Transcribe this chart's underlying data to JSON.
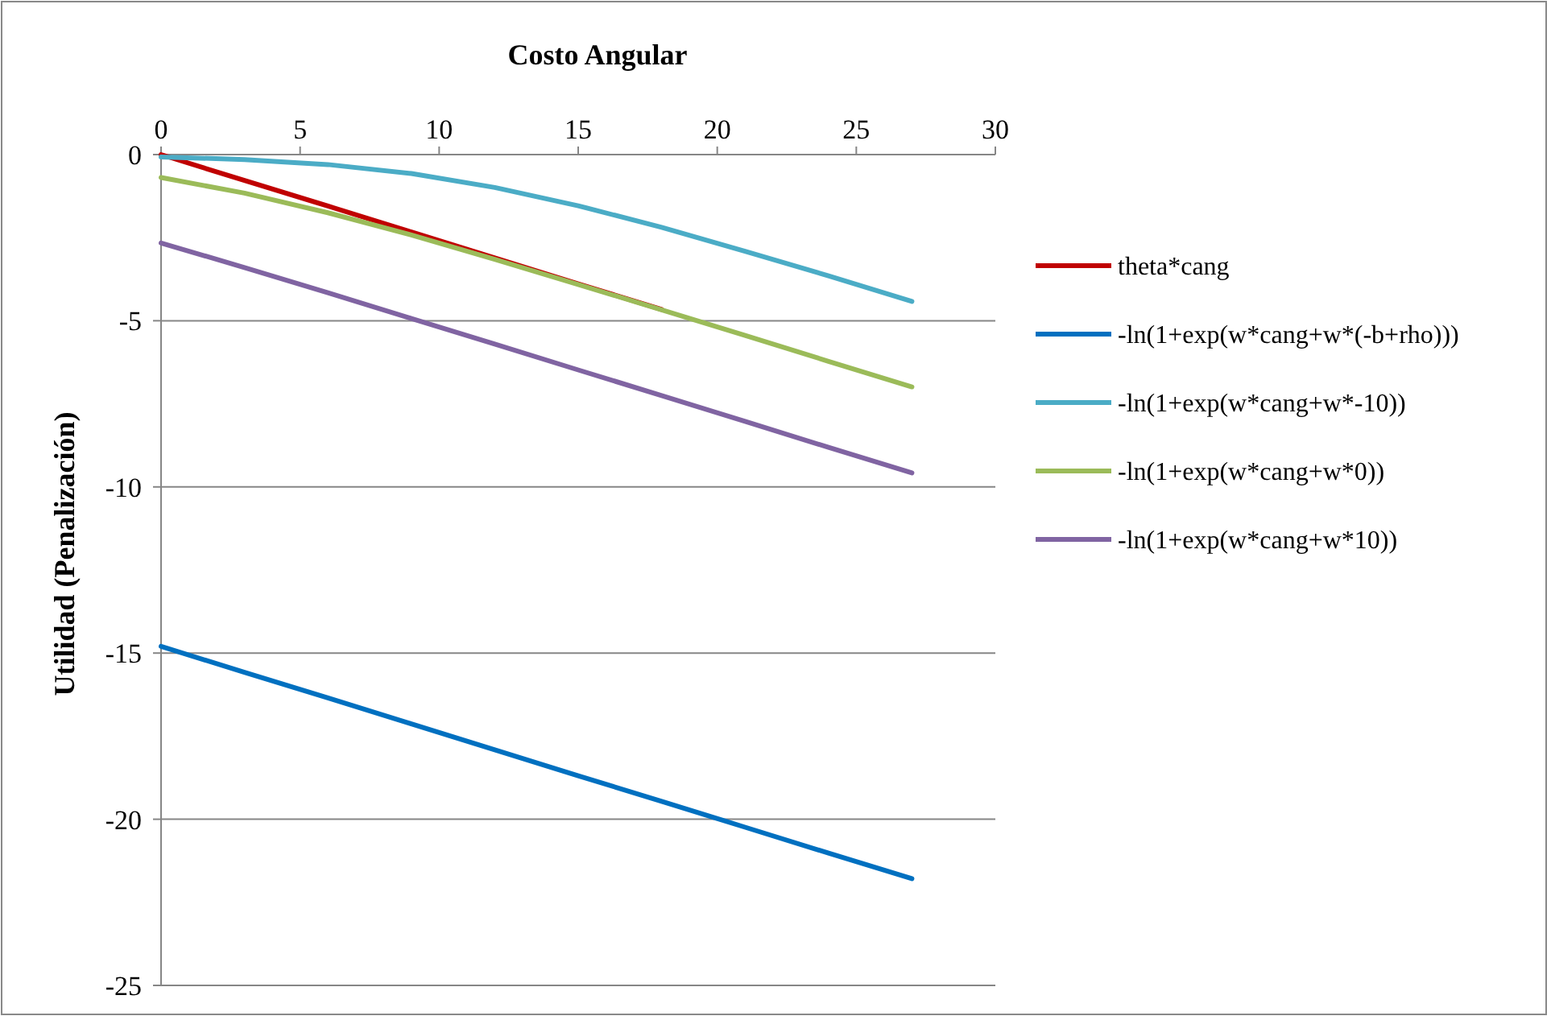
{
  "chart_data": {
    "type": "line",
    "xlabel": "Costo Angular",
    "ylabel": "Utilidad  (Penalización)",
    "x": [
      0,
      3,
      6,
      9,
      12,
      15,
      18,
      21,
      24,
      27
    ],
    "xlim": [
      0,
      30
    ],
    "xticks": [
      0,
      5,
      10,
      15,
      20,
      25,
      30
    ],
    "ylim": [
      -25,
      0
    ],
    "yticks": [
      -25,
      -20,
      -15,
      -10,
      -5,
      0
    ],
    "grid": "y",
    "legend": "right",
    "marker": "none",
    "line_style": "solid",
    "series": [
      {
        "name": "theta*cang",
        "color": "#c00000",
        "values": [
          0,
          -0.78,
          -1.55,
          -2.33,
          -3.11,
          -3.89,
          -4.66,
          null,
          null,
          null
        ]
      },
      {
        "name": "-ln(1+exp(w*cang+w*(-b+rho)))",
        "color": "#0070c0",
        "values": [
          -14.8,
          -15.58,
          -16.35,
          -17.13,
          -17.91,
          -18.69,
          -19.46,
          -20.24,
          -21.02,
          -21.79
        ]
      },
      {
        "name": "-ln(1+exp(w*cang+w*-10))",
        "color": "#4bacc6",
        "values": [
          -0.07,
          -0.15,
          -0.3,
          -0.57,
          -0.99,
          -1.54,
          -2.19,
          -2.91,
          -3.65,
          -4.42
        ]
      },
      {
        "name": "-ln(1+exp(w*cang+w*0))",
        "color": "#9bbb59",
        "values": [
          -0.69,
          -1.16,
          -1.75,
          -2.42,
          -3.15,
          -3.91,
          -4.67,
          -5.44,
          -6.22,
          -6.99
        ]
      },
      {
        "name": "-ln(1+exp(w*cang+w*10))",
        "color": "#8064a2",
        "values": [
          -2.66,
          -3.4,
          -4.16,
          -4.93,
          -5.7,
          -6.48,
          -7.25,
          -8.03,
          -8.81,
          -9.58
        ]
      }
    ]
  }
}
